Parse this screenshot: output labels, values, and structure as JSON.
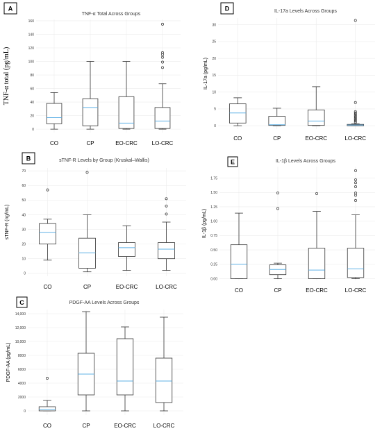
{
  "chart_data": [
    {
      "id": "A",
      "type": "box",
      "panel_letter": "A",
      "title": "TNF-α Total Across Groups",
      "ylabel": "TNF-α total (pg/mL)",
      "ylabel_style": "serif",
      "categories": [
        "CO",
        "CP",
        "EO-CRC",
        "LO-CRC"
      ],
      "ylim": [
        -5,
        162
      ],
      "yticks": [
        0,
        20,
        40,
        60,
        80,
        100,
        120,
        140,
        160
      ],
      "ytick_labels": [
        "0",
        "20",
        "40",
        "60",
        "80",
        "100",
        "120",
        "140",
        "160"
      ],
      "grid": true,
      "boxes": [
        {
          "category": "CO",
          "whisker_low": 0,
          "q1": 8,
          "median": 17,
          "q3": 38,
          "whisker_high": 54,
          "outliers": []
        },
        {
          "category": "CP",
          "whisker_low": 0,
          "q1": 5,
          "median": 32,
          "q3": 45,
          "whisker_high": 100,
          "outliers": []
        },
        {
          "category": "EO-CRC",
          "whisker_low": 0,
          "q1": 1,
          "median": 9,
          "q3": 48,
          "whisker_high": 100,
          "outliers": []
        },
        {
          "category": "LO-CRC",
          "whisker_low": 0,
          "q1": 1,
          "median": 12,
          "q3": 32,
          "whisker_high": 67,
          "outliers": [
            155,
            113,
            110,
            106,
            99,
            91
          ]
        }
      ]
    },
    {
      "id": "D",
      "type": "box",
      "panel_letter": "D",
      "title": "IL-17a Levels Across Groups",
      "ylabel": "IL-17a (pg/mL)",
      "ylabel_style": "sans",
      "categories": [
        "CO",
        "CP",
        "EO-CRC",
        "LO-CRC"
      ],
      "ylim": [
        -1,
        32
      ],
      "yticks": [
        0,
        5,
        10,
        15,
        20,
        25,
        30
      ],
      "ytick_labels": [
        "0",
        "5",
        "10",
        "15",
        "20",
        "25",
        "30"
      ],
      "grid": true,
      "boxes": [
        {
          "category": "CO",
          "whisker_low": 0,
          "q1": 0.8,
          "median": 3.8,
          "q3": 6.5,
          "whisker_high": 8.3,
          "outliers": []
        },
        {
          "category": "CP",
          "whisker_low": 0,
          "q1": 0.1,
          "median": 0.3,
          "q3": 2.8,
          "whisker_high": 5.2,
          "outliers": []
        },
        {
          "category": "EO-CRC",
          "whisker_low": 0,
          "q1": 0.1,
          "median": 1.4,
          "q3": 4.7,
          "whisker_high": 11.6,
          "outliers": []
        },
        {
          "category": "LO-CRC",
          "whisker_low": 0,
          "q1": 0,
          "median": 0.2,
          "q3": 0.4,
          "whisker_high": 0.6,
          "outliers": [
            31.3,
            6.9,
            4.2,
            3.8,
            3.4,
            3.0,
            2.6,
            2.2,
            1.8,
            1.4,
            1.0
          ]
        }
      ]
    },
    {
      "id": "B",
      "type": "box",
      "panel_letter": "B",
      "title": "sTNF-R Levels by Group (Kruskal–Wallis)",
      "ylabel": "sTNF-R (ng/mL)",
      "ylabel_style": "sans",
      "categories": [
        "CO",
        "CP",
        "EO-CRC",
        "LO-CRC"
      ],
      "ylim": [
        -2,
        72
      ],
      "yticks": [
        0,
        10,
        20,
        30,
        40,
        50,
        60,
        70
      ],
      "ytick_labels": [
        "0",
        "10",
        "20",
        "30",
        "40",
        "50",
        "60",
        "70"
      ],
      "grid": true,
      "boxes": [
        {
          "category": "CO",
          "whisker_low": 9,
          "q1": 20,
          "median": 28,
          "q3": 34,
          "whisker_high": 37,
          "outliers": [
            57
          ]
        },
        {
          "category": "CP",
          "whisker_low": 1,
          "q1": 3.5,
          "median": 14,
          "q3": 24,
          "whisker_high": 40,
          "outliers": [
            69
          ]
        },
        {
          "category": "EO-CRC",
          "whisker_low": 2,
          "q1": 11.5,
          "median": 17.5,
          "q3": 21,
          "whisker_high": 32.5,
          "outliers": []
        },
        {
          "category": "LO-CRC",
          "whisker_low": 2,
          "q1": 10,
          "median": 16.5,
          "q3": 21,
          "whisker_high": 35,
          "outliers": [
            51,
            46,
            40.5
          ]
        }
      ]
    },
    {
      "id": "E",
      "type": "box",
      "panel_letter": "E",
      "title": "IL-1β Levels Across Groups",
      "ylabel": "IL-1β (pg/mL)",
      "ylabel_style": "sans",
      "categories": [
        "CO",
        "CP",
        "EO-CRC",
        "LO-CRC"
      ],
      "ylim": [
        -0.03,
        1.95
      ],
      "yticks": [
        0,
        0.25,
        0.5,
        0.75,
        1.0,
        1.25,
        1.5,
        1.75
      ],
      "ytick_labels": [
        "0.00",
        "0.25",
        "0.50",
        "0.75",
        "1.00",
        "1.25",
        "1.50",
        "1.75"
      ],
      "grid": true,
      "boxes": [
        {
          "category": "CO",
          "whisker_low": 0,
          "q1": 0,
          "median": 0.25,
          "q3": 0.59,
          "whisker_high": 1.14,
          "outliers": []
        },
        {
          "category": "CP",
          "whisker_low": 0,
          "q1": 0.07,
          "median": 0.16,
          "q3": 0.24,
          "whisker_high": 0.27,
          "outliers": [
            1.49,
            1.22
          ]
        },
        {
          "category": "EO-CRC",
          "whisker_low": 0,
          "q1": 0,
          "median": 0.15,
          "q3": 0.53,
          "whisker_high": 1.17,
          "outliers": [
            1.48
          ]
        },
        {
          "category": "LO-CRC",
          "whisker_low": 0,
          "q1": 0.02,
          "median": 0.17,
          "q3": 0.53,
          "whisker_high": 1.11,
          "outliers": [
            1.88,
            1.72,
            1.67,
            1.6,
            1.49,
            1.45,
            1.36
          ]
        }
      ]
    },
    {
      "id": "C",
      "type": "box",
      "panel_letter": "C",
      "title": "PDGF-AA Levels Across Groups",
      "ylabel": "PDGF-AA (pg/mL)",
      "ylabel_style": "sans",
      "categories": [
        "CO",
        "CP",
        "EO-CRC",
        "LO-CRC"
      ],
      "ylim": [
        -600,
        14600
      ],
      "yticks": [
        0,
        2000,
        4000,
        6000,
        8000,
        10000,
        12000,
        14000
      ],
      "ytick_labels": [
        "0",
        "2000",
        "4000",
        "6000",
        "8000",
        "10,000",
        "12,000",
        "14,000"
      ],
      "grid": true,
      "boxes": [
        {
          "category": "CO",
          "whisker_low": 0,
          "q1": 0,
          "median": 200,
          "q3": 600,
          "whisker_high": 1500,
          "outliers": [
            4700
          ]
        },
        {
          "category": "CP",
          "whisker_low": 0,
          "q1": 2300,
          "median": 5300,
          "q3": 8300,
          "whisker_high": 14300,
          "outliers": []
        },
        {
          "category": "EO-CRC",
          "whisker_low": 0,
          "q1": 2300,
          "median": 4300,
          "q3": 10400,
          "whisker_high": 12100,
          "outliers": []
        },
        {
          "category": "LO-CRC",
          "whisker_low": 0,
          "q1": 1200,
          "median": 4300,
          "q3": 7600,
          "whisker_high": 13500,
          "outliers": []
        }
      ]
    }
  ]
}
